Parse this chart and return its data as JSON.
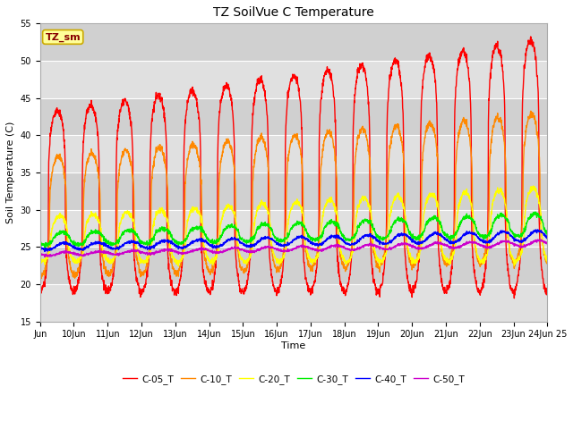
{
  "title": "TZ SoilVue C Temperature",
  "ylabel": "Soil Temperature (C)",
  "xlabel": "Time",
  "ylim": [
    15,
    55
  ],
  "background_color": "#e8e8e8",
  "fig_background": "#ffffff",
  "grid_color": "#ffffff",
  "annotation_text": "TZ_sm",
  "annotation_bg": "#ffff99",
  "annotation_edge": "#ccaa00",
  "annotation_text_color": "#880000",
  "series_colors": [
    "#ff0000",
    "#ff8800",
    "#ffff00",
    "#00ee00",
    "#0000ff",
    "#cc00cc"
  ],
  "series_labels": [
    "C-05_T",
    "C-10_T",
    "C-20_T",
    "C-30_T",
    "C-40_T",
    "C-50_T"
  ],
  "xtick_labels": [
    "Jun",
    "10Jun",
    "11Jun",
    "12Jun",
    "13Jun",
    "14Jun",
    "15Jun",
    "16Jun",
    "17Jun",
    "18Jun",
    "19Jun",
    "20Jun",
    "21Jun",
    "22Jun",
    "23Jun",
    "24Jun 25"
  ],
  "num_days": 15,
  "points_per_day": 144,
  "band_colors": [
    "#e0e0e0",
    "#d0d0d0"
  ],
  "linewidth": 1.0
}
